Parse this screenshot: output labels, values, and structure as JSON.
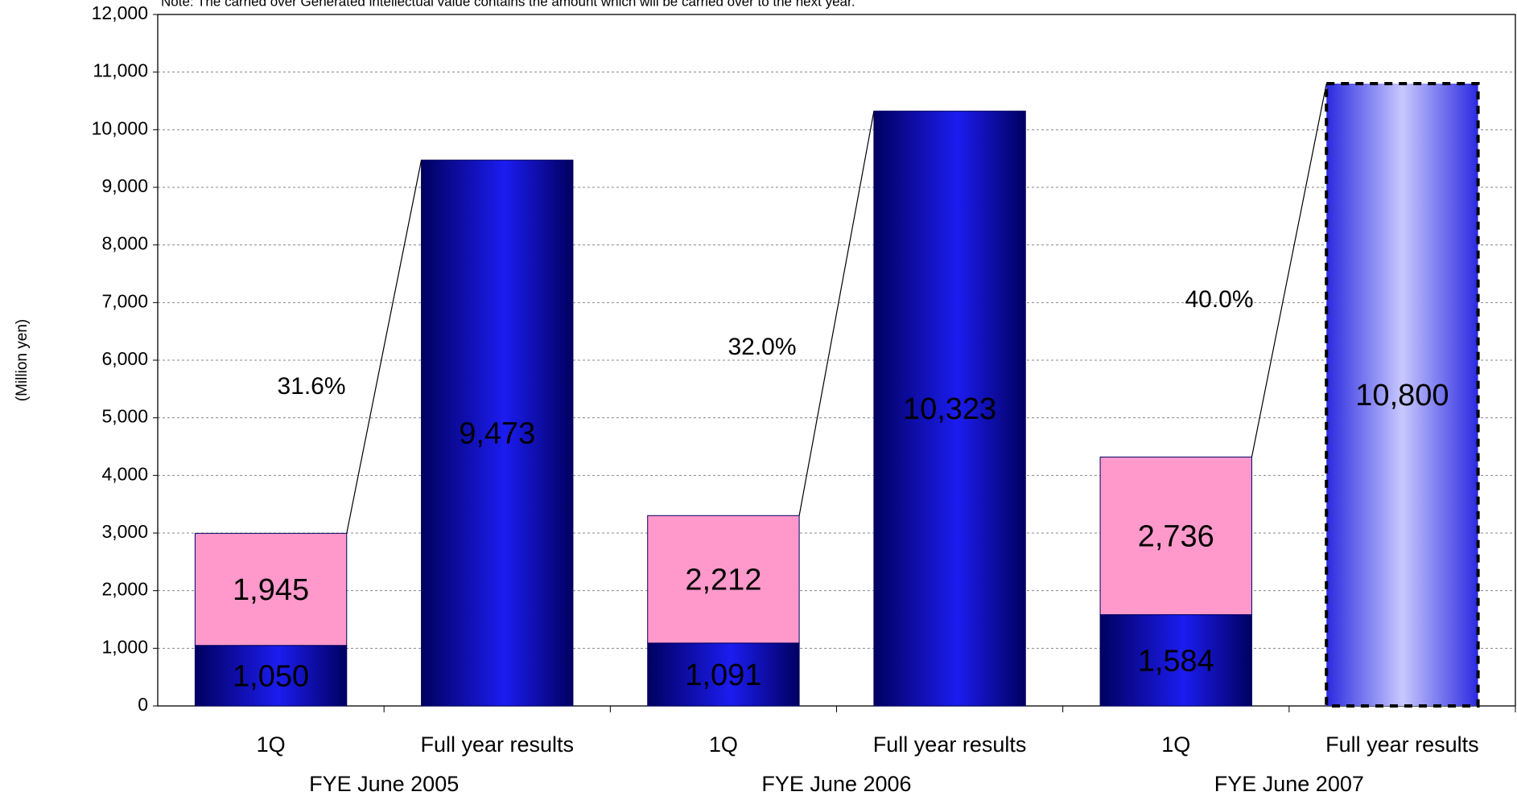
{
  "chart_data": {
    "type": "bar",
    "stacked": true,
    "note": "Note: The carried over Generated intellectual value contains the amount which will be carried over to the next year.",
    "y_label": "(Million yen)",
    "categories": [
      "1Q",
      "Full year results",
      "1Q",
      "Full year results",
      "1Q",
      "Full year results"
    ],
    "groups": [
      "FYE June 2005",
      "FYE June 2006",
      "FYE June 2007"
    ],
    "series": [
      {
        "color": "#0000a0",
        "colors": [
          "#0000a0",
          "#0000a0",
          "#0000a0",
          "#0000a0",
          "#0000a0",
          "#c8c8ff"
        ],
        "values": [
          1050,
          9473,
          1091,
          10323,
          1584,
          10800
        ],
        "value_labels": [
          "1,050",
          "9,473",
          "1,091",
          "10,323",
          "1,584",
          "10,800"
        ]
      },
      {
        "color": "#ff99cc",
        "values": [
          1945,
          null,
          2212,
          null,
          2736,
          null
        ],
        "value_labels": [
          "1,945",
          null,
          "2,212",
          null,
          "2,736",
          null
        ]
      }
    ],
    "annotations": [
      "31.6%",
      "32.0%",
      "40.0%"
    ],
    "ylim": [
      0,
      12000
    ],
    "yticks": [
      0,
      {
        "value": 1000,
        "label": "1,000"
      },
      {
        "value": 2000,
        "label": "2,000"
      },
      {
        "value": 3000,
        "label": "3,000"
      },
      {
        "value": 4000,
        "label": "4,000"
      },
      {
        "value": 5000,
        "label": "5,000"
      },
      {
        "value": 6000,
        "label": "6,000"
      },
      {
        "value": 7000,
        "label": "7,000"
      },
      {
        "value": 8000,
        "label": "8,000"
      },
      {
        "value": 9000,
        "label": "9,000"
      },
      {
        "value": 10000,
        "label": "10,000"
      },
      {
        "value": 11000,
        "label": "11,000"
      },
      {
        "value": 12000,
        "label": "12,000"
      }
    ],
    "grid": true
  }
}
